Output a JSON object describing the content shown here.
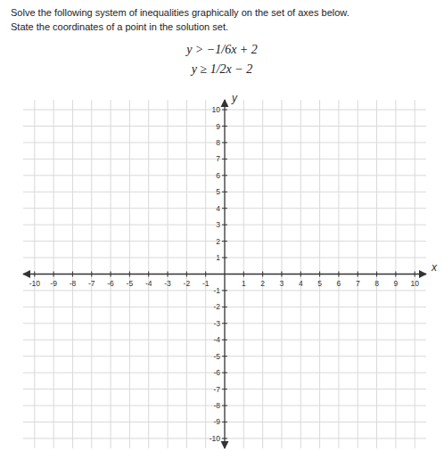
{
  "chart_data": {
    "type": "coordinate_plane",
    "title": "Solve the following system of inequalities graphically on the set of axes below.",
    "subtitle": "State the coordinates of a point in the solution set.",
    "annotations": [
      "y > −1/6x + 2",
      "y ≥ 1/2x − 2"
    ],
    "xlabel": "x",
    "ylabel": "y",
    "xlim": [
      -10.6,
      10.6
    ],
    "ylim": [
      -10.6,
      10.6
    ],
    "xticks": [
      -10,
      -9,
      -8,
      -7,
      -6,
      -5,
      -4,
      -3,
      -2,
      -1,
      1,
      2,
      3,
      4,
      5,
      6,
      7,
      8,
      9,
      10
    ],
    "yticks": [
      -10,
      -9,
      -8,
      -7,
      -6,
      -5,
      -4,
      -3,
      -2,
      -1,
      1,
      2,
      3,
      4,
      5,
      6,
      7,
      8,
      9,
      10
    ],
    "grid": true
  }
}
